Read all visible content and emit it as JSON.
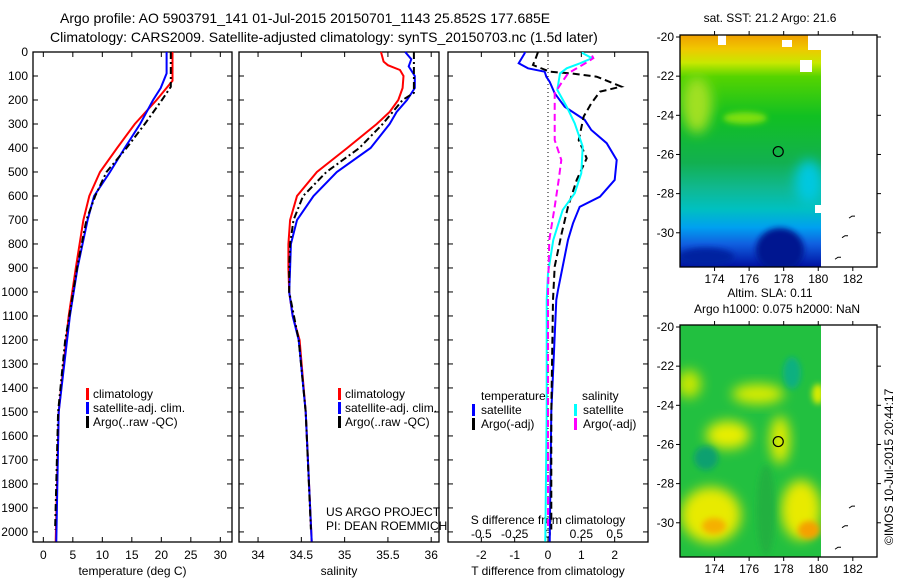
{
  "title": {
    "line1": "Argo profile: AO 5903791_141 01-Jul-2015 20150701_1143 25.852S 177.685E",
    "line2": "Climatology: CARS2009. Satellite-adjusted climatology: synTS_20150703.nc (1.5d later)"
  },
  "credits": {
    "project": "US ARGO PROJECT",
    "pi": "PI: DEAN ROEMMICH",
    "stamp": "©IMOS 10-Jul-2015 20:44:17"
  },
  "chart_data": [
    {
      "id": "temperature",
      "type": "line",
      "xlabel": "temperature (deg C)",
      "ylabel": "depth",
      "xlim": [
        -1.75,
        31.98
      ],
      "ylim": [
        2042,
        0
      ],
      "xticks": [
        0,
        5,
        10,
        15,
        20,
        25,
        30
      ],
      "yticks": [
        0,
        100,
        200,
        300,
        400,
        500,
        600,
        700,
        800,
        900,
        1000,
        1100,
        1200,
        1300,
        1400,
        1500,
        1600,
        1700,
        1800,
        1900,
        2000
      ],
      "legend": [
        "climatology",
        "satellite-adj. clim.",
        "Argo(..raw -QC)"
      ],
      "series": [
        {
          "name": "climatology",
          "color": "#ff0000",
          "style": "solid",
          "depth": [
            0,
            120,
            200,
            300,
            400,
            500,
            600,
            700,
            900,
            1100,
            1500,
            2040
          ],
          "values": [
            21.9,
            21.9,
            19.2,
            15.5,
            12.5,
            9.6,
            7.8,
            6.8,
            5.5,
            4.3,
            2.6,
            2.1
          ]
        },
        {
          "name": "satellite-adj. clim.",
          "color": "#0000ff",
          "style": "solid",
          "depth": [
            0,
            89,
            150,
            200,
            300,
            400,
            500,
            600,
            700,
            900,
            1100,
            1500,
            2040
          ],
          "values": [
            20.9,
            20.9,
            19.9,
            18.6,
            16.4,
            13.8,
            11.3,
            8.6,
            7.5,
            5.8,
            4.5,
            2.6,
            2.2
          ]
        },
        {
          "name": "Argo(..raw -QC)",
          "color": "#000000",
          "style": "dashdot",
          "depth": [
            0,
            145,
            200,
            300,
            400,
            500,
            600,
            700,
            900,
            1100,
            1200,
            1500,
            1990
          ],
          "values": [
            21.6,
            21.6,
            20.1,
            17.2,
            14.1,
            10.7,
            8.8,
            7.3,
            5.7,
            4.4,
            3.7,
            2.5,
            2.0
          ]
        }
      ]
    },
    {
      "id": "salinity",
      "type": "line",
      "xlabel": "salinity",
      "ylabel": "depth",
      "xlim": [
        33.78,
        36.09
      ],
      "ylim": [
        2042,
        0
      ],
      "xticks": [
        34,
        34.5,
        35,
        35.5,
        36
      ],
      "legend": [
        "climatology",
        "satellite-adj. clim.",
        "Argo(..raw -QC)"
      ],
      "series": [
        {
          "name": "climatology",
          "color": "#ff0000",
          "style": "solid",
          "depth": [
            0,
            40,
            55,
            75,
            100,
            150,
            200,
            250,
            300,
            400,
            500,
            600,
            700,
            800,
            900,
            1000,
            1100,
            1200,
            1500,
            2040
          ],
          "values": [
            35.42,
            35.45,
            35.5,
            35.64,
            35.68,
            35.67,
            35.62,
            35.52,
            35.37,
            35.03,
            34.68,
            34.45,
            34.37,
            34.35,
            34.35,
            34.36,
            34.4,
            34.48,
            34.55,
            34.62
          ]
        },
        {
          "name": "satellite-adj. clim.",
          "color": "#0000ff",
          "style": "solid",
          "depth": [
            0,
            30,
            60,
            100,
            150,
            200,
            250,
            300,
            400,
            500,
            600,
            700,
            800,
            900,
            1000,
            1100,
            1200,
            1500,
            2040
          ],
          "values": [
            35.7,
            35.77,
            35.74,
            35.81,
            35.81,
            35.72,
            35.6,
            35.52,
            35.3,
            34.91,
            34.64,
            34.45,
            34.38,
            34.37,
            34.36,
            34.4,
            34.47,
            34.55,
            34.62
          ]
        },
        {
          "name": "Argo(..raw -QC)",
          "color": "#000000",
          "style": "dashdot",
          "depth": [
            0,
            170,
            200,
            300,
            400,
            500,
            600,
            700,
            800,
            900,
            1000,
            1200,
            1500,
            1990
          ],
          "values": [
            35.8,
            35.8,
            35.67,
            35.44,
            35.17,
            34.79,
            34.52,
            34.41,
            34.37,
            34.36,
            34.36,
            34.47,
            34.55,
            34.61
          ]
        }
      ]
    },
    {
      "id": "difference",
      "type": "line",
      "xlabel": "T difference from climatology",
      "x2label": "S difference from climatology",
      "xlim": [
        -3,
        3
      ],
      "x2lim": [
        -0.75,
        0.75
      ],
      "ylim": [
        2042,
        0
      ],
      "xticks": [
        -2,
        -1,
        0,
        1,
        2
      ],
      "x2ticks": [
        "-0.5",
        "-0.25",
        "0",
        "0.25",
        "0.5"
      ],
      "legend_headers": [
        "temperature",
        "salinity"
      ],
      "legend": [
        "satellite",
        "Argo(-adj)",
        "satellite",
        "Argo(-adj)"
      ],
      "series": [
        {
          "name": "temperature satellite",
          "axis": "T",
          "color": "#0000ff",
          "style": "solid",
          "depth": [
            0,
            5,
            47,
            68,
            82,
            103,
            124,
            172,
            228,
            283,
            325,
            380,
            450,
            533,
            603,
            645,
            714,
            783,
            894,
            992,
            1033,
            1500,
            2040
          ],
          "values": [
            -0.7,
            -0.7,
            -0.88,
            -0.6,
            -0.1,
            -0.05,
            0.05,
            0.2,
            0.5,
            1.1,
            1.3,
            1.76,
            2.06,
            2.0,
            1.56,
            0.95,
            0.75,
            0.6,
            0.44,
            0.3,
            0.25,
            0.1,
            0.05
          ]
        },
        {
          "name": "temperature Argo(-adj)",
          "axis": "T",
          "color": "#000000",
          "style": "dashed",
          "depth": [
            0,
            20,
            54,
            82,
            90,
            103,
            130,
            144,
            165,
            214,
            269,
            367,
            443,
            533,
            645,
            755,
            894,
            1033,
            1500,
            1990
          ],
          "values": [
            -0.3,
            -0.35,
            -0.45,
            0.05,
            0.75,
            1.46,
            1.95,
            2.2,
            1.56,
            1.3,
            1.07,
            0.92,
            1.16,
            0.86,
            0.6,
            0.41,
            0.2,
            0.15,
            0.1,
            0.1
          ]
        },
        {
          "name": "salinity satellite",
          "axis": "S",
          "color": "#00ffff",
          "style": "solid",
          "depth": [
            0,
            5,
            26,
            47,
            68,
            89,
            158,
            228,
            297,
            394,
            505,
            589,
            658,
            783,
            922,
            1033,
            1500,
            2040
          ],
          "values": [
            0.26,
            0.26,
            0.33,
            0.24,
            0.14,
            0.09,
            0.07,
            0.14,
            0.2,
            0.26,
            0.25,
            0.2,
            0.11,
            0.04,
            0.0,
            -0.01,
            -0.01,
            -0.02
          ]
        },
        {
          "name": "salinity Argo(-adj)",
          "axis": "S",
          "color": "#ff00ff",
          "style": "dashed",
          "depth": [
            15,
            26,
            47,
            89,
            130,
            172,
            228,
            297,
            367,
            450,
            533,
            645,
            783,
            1000,
            1500,
            1990
          ],
          "values": [
            0.33,
            0.34,
            0.28,
            0.15,
            0.1,
            0.05,
            0.05,
            0.05,
            0.05,
            0.1,
            0.08,
            0.05,
            0.01,
            0.0,
            0.0,
            0.0
          ]
        }
      ]
    },
    {
      "id": "sst-map",
      "type": "heatmap",
      "title": "sat. SST: 21.2 Argo: 21.6",
      "xlim": [
        172,
        183.4
      ],
      "ylim": [
        -31.85,
        -20
      ],
      "xticks": [
        174,
        176,
        178,
        180,
        182
      ],
      "yticks": [
        -20,
        -22,
        -24,
        -26,
        -28,
        -30
      ],
      "marker": {
        "lon": 177.685,
        "lat": -25.852
      }
    },
    {
      "id": "sla-map",
      "type": "heatmap",
      "title": "Altim. SLA: 0.11",
      "subtitle": "Argo h1000: 0.075 h2000: NaN",
      "xlim": [
        172,
        183.4
      ],
      "ylim": [
        -31.85,
        -20
      ],
      "xticks": [
        174,
        176,
        178,
        180,
        182
      ],
      "yticks": [
        -20,
        -22,
        -24,
        -26,
        -28,
        -30
      ],
      "marker": {
        "lon": 177.685,
        "lat": -25.852
      }
    }
  ]
}
